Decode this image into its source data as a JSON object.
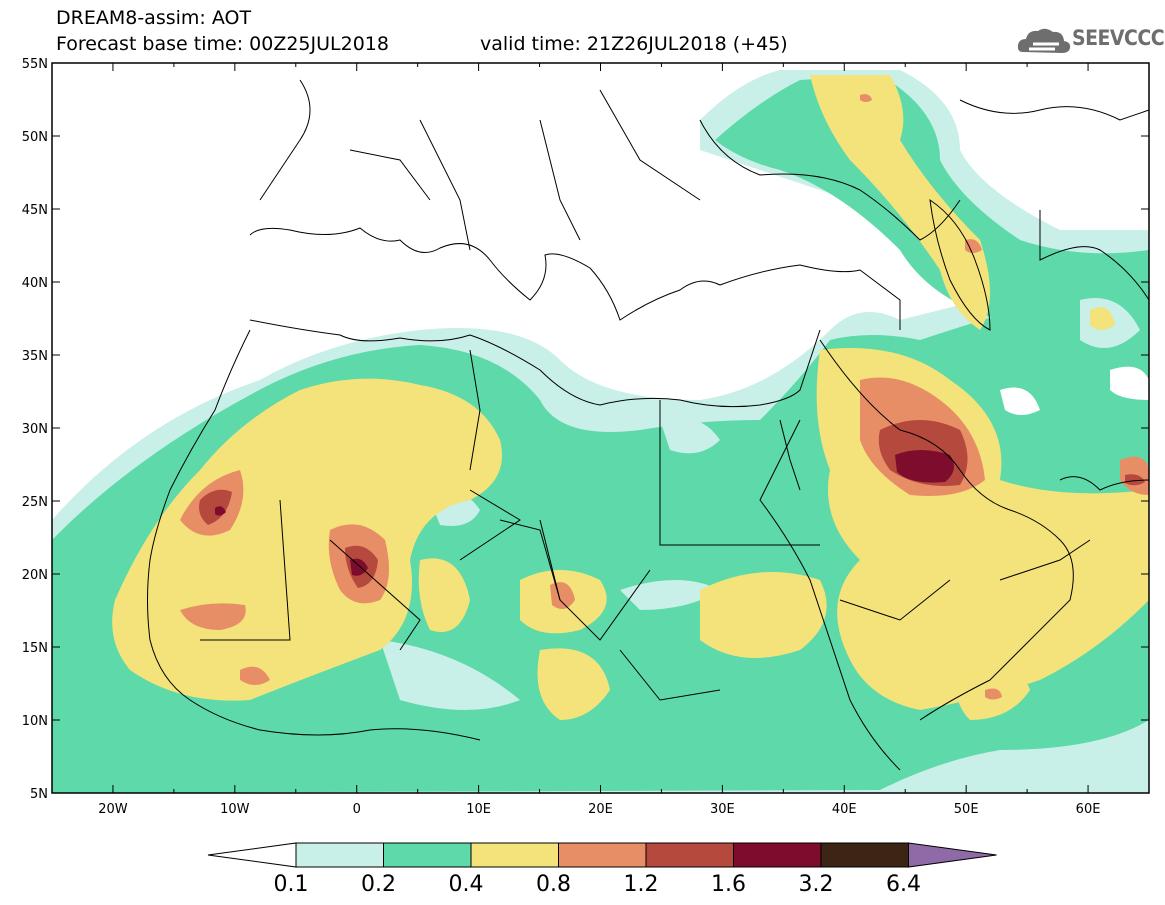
{
  "header": {
    "title": "DREAM8-assim: AOT",
    "base_time": "Forecast base time: 00Z25JUL2018",
    "valid_time": "valid time: 21Z26JUL2018 (+45)",
    "logo_text": "SEEVCCC"
  },
  "map": {
    "lon_labels": [
      "20W",
      "10W",
      "0",
      "10E",
      "20E",
      "30E",
      "40E",
      "50E",
      "60E"
    ],
    "lat_labels": [
      "55N",
      "50N",
      "45N",
      "40N",
      "35N",
      "30N",
      "25N",
      "20N",
      "15N",
      "10N",
      "5N"
    ],
    "lon_range": [
      -25,
      65
    ],
    "lat_range": [
      5,
      55
    ]
  },
  "colorbar": {
    "ticks": [
      "0.1",
      "0.2",
      "0.4",
      "0.8",
      "1.2",
      "1.6",
      "3.2",
      "6.4"
    ],
    "colors": [
      "#ffffff",
      "#c8efe8",
      "#5dd9aa",
      "#f4e37a",
      "#e88e66",
      "#b5493e",
      "#7e0c2c",
      "#3c2515",
      "#8e6ba6"
    ]
  },
  "chart_data": {
    "type": "heatmap",
    "title": "DREAM8-assim: AOT",
    "variable": "Aerosol optical thickness",
    "levels": [
      0.1,
      0.2,
      0.4,
      0.8,
      1.2,
      1.6,
      3.2,
      6.4
    ],
    "xlim": [
      -25,
      65
    ],
    "ylim": [
      5,
      55
    ]
  }
}
